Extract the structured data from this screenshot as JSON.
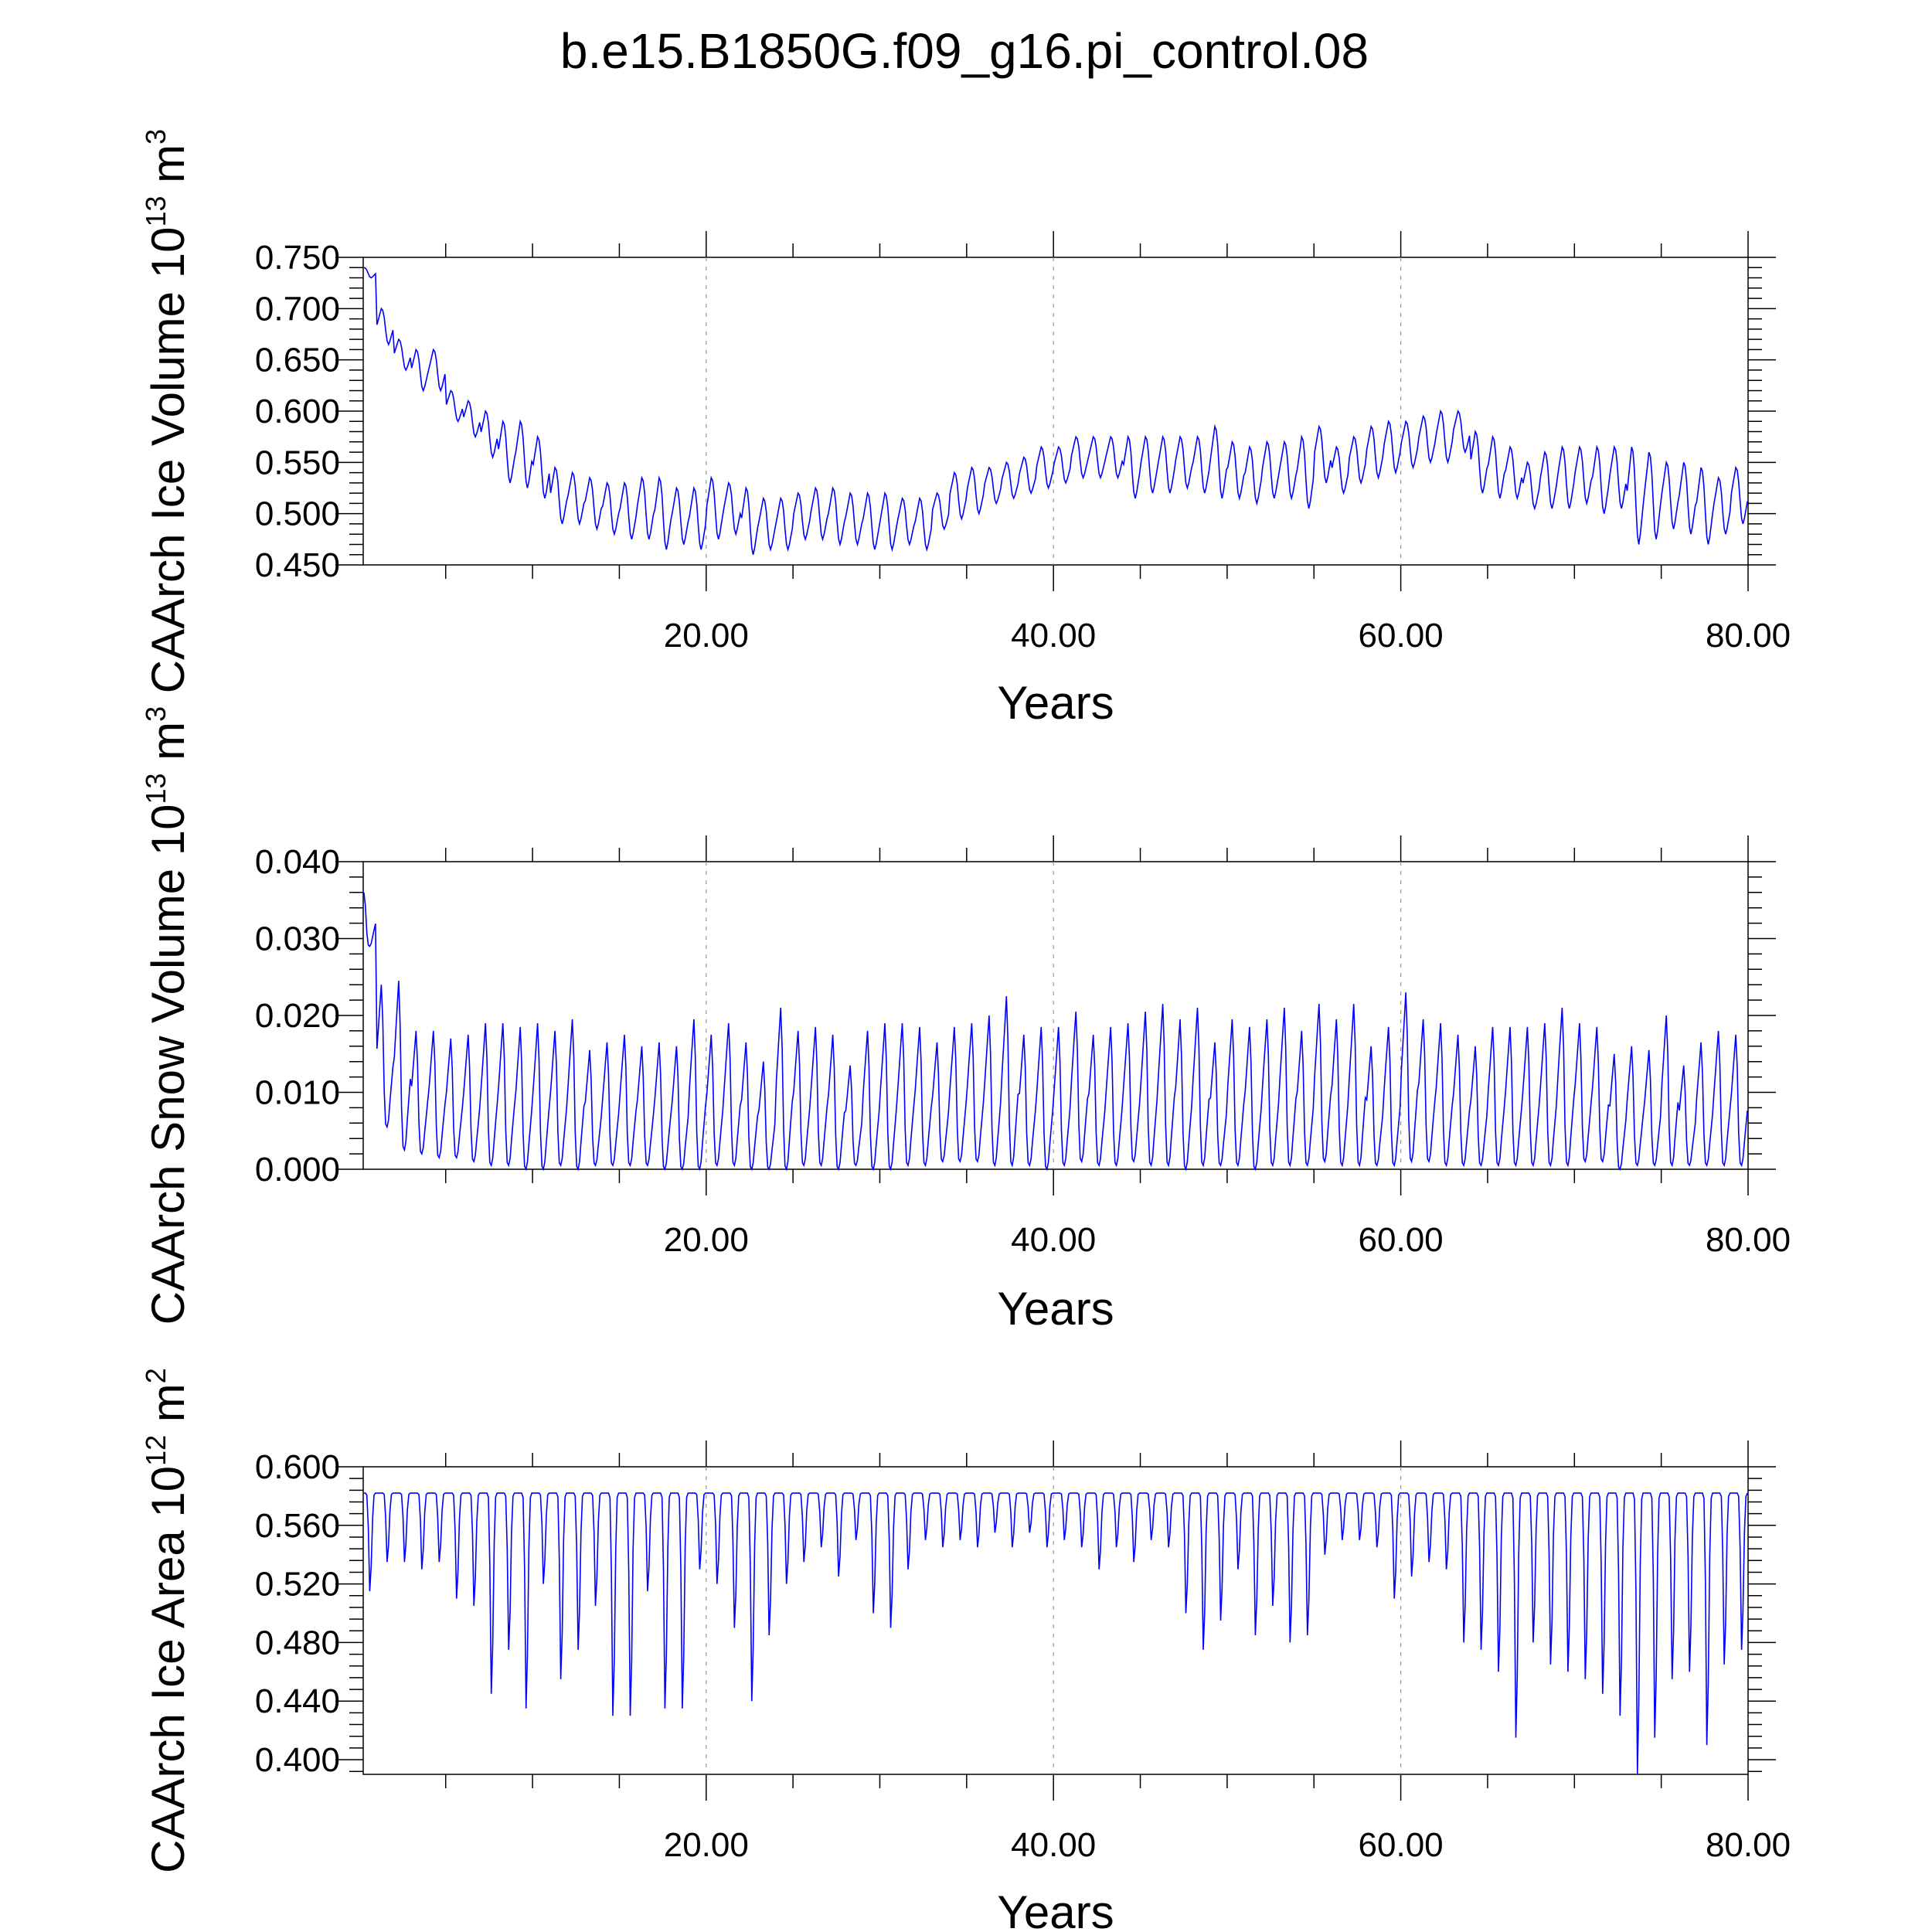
{
  "figure": {
    "title": "b.e15.B1850G.f09_g16.pi_control.08"
  },
  "chart_data": [
    {
      "type": "line",
      "xlabel": "Years",
      "ylabel": {
        "pre": "CAArch Ice Volume 10",
        "exp": "13",
        "mid": " m",
        "exp2": "3"
      },
      "xlim": [
        0.25,
        80
      ],
      "ylim": [
        0.45,
        0.75
      ],
      "xticks": [
        "20.00",
        "40.00",
        "60.00",
        "80.00"
      ],
      "yticks": [
        "0.750",
        "0.700",
        "0.650",
        "0.600",
        "0.550",
        "0.500",
        "0.450"
      ],
      "grid": "dashed vertical lines at 20, 40, 60",
      "color": "#0000ff",
      "series": [
        {
          "annual_max": [
            0.74,
            0.7,
            0.67,
            0.66,
            0.66,
            0.62,
            0.61,
            0.6,
            0.59,
            0.59,
            0.575,
            0.545,
            0.54,
            0.535,
            0.53,
            0.53,
            0.535,
            0.535,
            0.525,
            0.525,
            0.535,
            0.53,
            0.525,
            0.515,
            0.515,
            0.52,
            0.525,
            0.525,
            0.52,
            0.52,
            0.52,
            0.515,
            0.515,
            0.52,
            0.54,
            0.545,
            0.545,
            0.55,
            0.555,
            0.565,
            0.565,
            0.575,
            0.575,
            0.575,
            0.575,
            0.575,
            0.575,
            0.575,
            0.575,
            0.585,
            0.57,
            0.565,
            0.57,
            0.57,
            0.575,
            0.585,
            0.565,
            0.575,
            0.585,
            0.59,
            0.59,
            0.595,
            0.6,
            0.6,
            0.58,
            0.575,
            0.565,
            0.55,
            0.56,
            0.565,
            0.565,
            0.565,
            0.565,
            0.565,
            0.56,
            0.55,
            0.55,
            0.545,
            0.535,
            0.545
          ],
          "annual_min": [
            0.73,
            0.665,
            0.64,
            0.62,
            0.62,
            0.59,
            0.575,
            0.555,
            0.53,
            0.525,
            0.515,
            0.49,
            0.49,
            0.485,
            0.48,
            0.475,
            0.475,
            0.465,
            0.47,
            0.465,
            0.475,
            0.48,
            0.46,
            0.465,
            0.465,
            0.475,
            0.475,
            0.47,
            0.47,
            0.465,
            0.465,
            0.47,
            0.465,
            0.485,
            0.495,
            0.5,
            0.51,
            0.515,
            0.52,
            0.525,
            0.53,
            0.535,
            0.535,
            0.535,
            0.515,
            0.52,
            0.52,
            0.525,
            0.52,
            0.515,
            0.515,
            0.51,
            0.515,
            0.515,
            0.505,
            0.53,
            0.52,
            0.53,
            0.535,
            0.54,
            0.545,
            0.55,
            0.55,
            0.56,
            0.52,
            0.515,
            0.515,
            0.505,
            0.505,
            0.505,
            0.51,
            0.5,
            0.505,
            0.47,
            0.475,
            0.485,
            0.48,
            0.47,
            0.48,
            0.49
          ]
        }
      ]
    },
    {
      "type": "line",
      "xlabel": "Years",
      "ylabel": {
        "pre": "CAArch Snow Volume 10",
        "exp": "13",
        "mid": " m",
        "exp2": "3"
      },
      "xlim": [
        0.25,
        80
      ],
      "ylim": [
        0.0,
        0.04
      ],
      "xticks": [
        "20.00",
        "40.00",
        "60.00",
        "80.00"
      ],
      "yticks": [
        "0.040",
        "0.030",
        "0.020",
        "0.010",
        "0.000"
      ],
      "grid": "dashed vertical lines at 20, 40, 60",
      "color": "#0000ff",
      "series": [
        {
          "annual_max": [
            0.036,
            0.024,
            0.0245,
            0.018,
            0.018,
            0.017,
            0.0175,
            0.019,
            0.019,
            0.0185,
            0.019,
            0.018,
            0.0195,
            0.0155,
            0.0165,
            0.0175,
            0.016,
            0.0165,
            0.016,
            0.0195,
            0.0175,
            0.019,
            0.0165,
            0.014,
            0.021,
            0.018,
            0.0185,
            0.0175,
            0.0135,
            0.018,
            0.019,
            0.019,
            0.0185,
            0.0165,
            0.0185,
            0.019,
            0.02,
            0.0225,
            0.0175,
            0.0185,
            0.0185,
            0.0205,
            0.0175,
            0.0185,
            0.019,
            0.0205,
            0.0215,
            0.0195,
            0.021,
            0.0165,
            0.0195,
            0.0185,
            0.0195,
            0.021,
            0.018,
            0.0215,
            0.0195,
            0.0215,
            0.016,
            0.0185,
            0.023,
            0.0195,
            0.019,
            0.0175,
            0.016,
            0.0185,
            0.0185,
            0.0185,
            0.019,
            0.021,
            0.019,
            0.0185,
            0.015,
            0.016,
            0.0155,
            0.02,
            0.0135,
            0.0165,
            0.018,
            0.0175
          ],
          "annual_min": [
            0.029,
            0.0055,
            0.0025,
            0.002,
            0.0015,
            0.0015,
            0.001,
            0.0005,
            0.0005,
            0.0,
            0.0,
            0.0005,
            0.0,
            0.0005,
            0.0005,
            0.0005,
            0.0005,
            0.0,
            0.0,
            0.0,
            0.0005,
            0.0005,
            0.0,
            0.0,
            0.0,
            0.0005,
            0.0005,
            0.0,
            0.0005,
            0.0,
            0.0,
            0.0005,
            0.0005,
            0.001,
            0.001,
            0.001,
            0.0005,
            0.0005,
            0.0005,
            0.0,
            0.0005,
            0.001,
            0.0005,
            0.0005,
            0.001,
            0.0005,
            0.0005,
            0.0,
            0.0005,
            0.0005,
            0.0005,
            0.0,
            0.0005,
            0.0005,
            0.0005,
            0.001,
            0.0005,
            0.0005,
            0.0005,
            0.0005,
            0.001,
            0.001,
            0.0005,
            0.0005,
            0.0005,
            0.0005,
            0.0005,
            0.0005,
            0.0005,
            0.0005,
            0.001,
            0.001,
            0.0,
            0.0005,
            0.0005,
            0.0005,
            0.0005,
            0.0005,
            0.0005,
            0.0005
          ]
        }
      ]
    },
    {
      "type": "line",
      "xlabel": "Years",
      "ylabel": {
        "pre": "CAArch Ice Area 10",
        "exp": "12",
        "mid": " m",
        "exp2": "2"
      },
      "xlim": [
        0.25,
        80
      ],
      "ylim": [
        0.39,
        0.6
      ],
      "xticks": [
        "20.00",
        "40.00",
        "60.00",
        "80.00"
      ],
      "yticks": [
        "0.600",
        "0.560",
        "0.520",
        "0.480",
        "0.440",
        "0.400"
      ],
      "grid": "dashed vertical lines at 20, 40, 60",
      "color": "#0000ff",
      "series": [
        {
          "annual_max": 0.582,
          "annual_min": [
            0.515,
            0.535,
            0.535,
            0.53,
            0.535,
            0.51,
            0.505,
            0.445,
            0.475,
            0.435,
            0.52,
            0.455,
            0.475,
            0.505,
            0.43,
            0.43,
            0.515,
            0.435,
            0.435,
            0.53,
            0.52,
            0.49,
            0.44,
            0.485,
            0.52,
            0.535,
            0.545,
            0.525,
            0.55,
            0.5,
            0.49,
            0.53,
            0.55,
            0.545,
            0.55,
            0.545,
            0.555,
            0.545,
            0.555,
            0.545,
            0.55,
            0.545,
            0.53,
            0.545,
            0.535,
            0.55,
            0.545,
            0.5,
            0.475,
            0.495,
            0.53,
            0.485,
            0.505,
            0.48,
            0.485,
            0.54,
            0.55,
            0.55,
            0.545,
            0.51,
            0.525,
            0.535,
            0.53,
            0.48,
            0.475,
            0.46,
            0.415,
            0.48,
            0.465,
            0.46,
            0.455,
            0.445,
            0.43,
            0.39,
            0.415,
            0.455,
            0.46,
            0.41,
            0.465,
            0.475
          ]
        }
      ]
    }
  ]
}
